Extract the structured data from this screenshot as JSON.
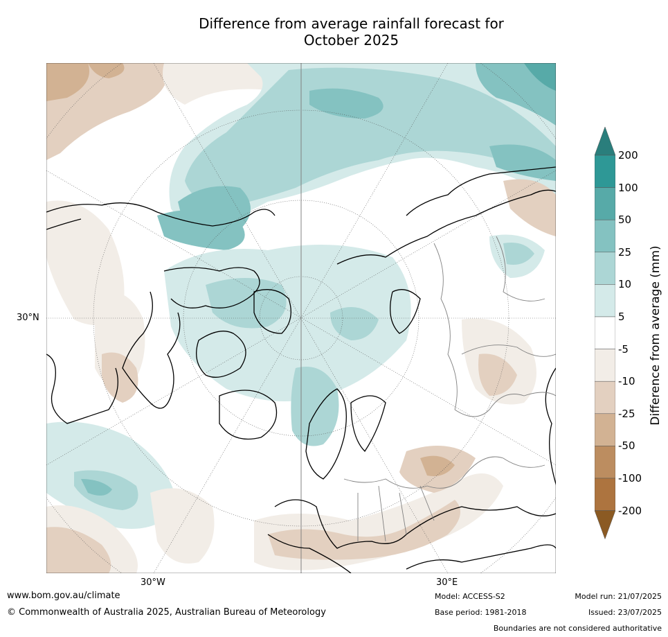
{
  "title": {
    "line1": "Difference from average rainfall forecast for",
    "line2": "October 2025"
  },
  "map": {
    "projection": "north polar stereographic",
    "lon_labels": [
      "30°W",
      "30°E"
    ],
    "lat_labels": [
      "30°N"
    ],
    "colors": {
      "coast": "#000000",
      "borders": "#808080",
      "graticule": "#555555"
    }
  },
  "colorbar": {
    "title": "Difference from average (mm)",
    "ticks": [
      "200",
      "100",
      "50",
      "25",
      "10",
      "5",
      "-5",
      "-10",
      "-25",
      "-50",
      "-100",
      "-200"
    ],
    "bins": [
      {
        "range": ">200",
        "color": "#2a7e7c"
      },
      {
        "range": "100 to 200",
        "color": "#2e9896"
      },
      {
        "range": "50 to 100",
        "color": "#57aaa8"
      },
      {
        "range": "25 to 50",
        "color": "#84c2c1"
      },
      {
        "range": "10 to 25",
        "color": "#acd6d5"
      },
      {
        "range": "5 to 10",
        "color": "#d4eae9"
      },
      {
        "range": "-5 to 5",
        "color": "#ffffff"
      },
      {
        "range": "-10 to -5",
        "color": "#f2ede7"
      },
      {
        "range": "-25 to -10",
        "color": "#e3d0c0"
      },
      {
        "range": "-50 to -25",
        "color": "#d2b293"
      },
      {
        "range": "-100 to -50",
        "color": "#bc8d60"
      },
      {
        "range": "-200 to -100",
        "color": "#ad743f"
      },
      {
        "range": "<-200",
        "color": "#8b5a23"
      }
    ]
  },
  "footer": {
    "website": "www.bom.gov.au/climate",
    "copyright": "© Commonwealth of Australia 2025, Australian Bureau of Meteorology",
    "model": "Model: ACCESS-S2",
    "base_period": "Base period: 1981-2018",
    "model_run": "Model run: 21/07/2025",
    "issued": "Issued: 23/07/2025",
    "disclaimer": "Boundaries are not considered authoritative"
  }
}
